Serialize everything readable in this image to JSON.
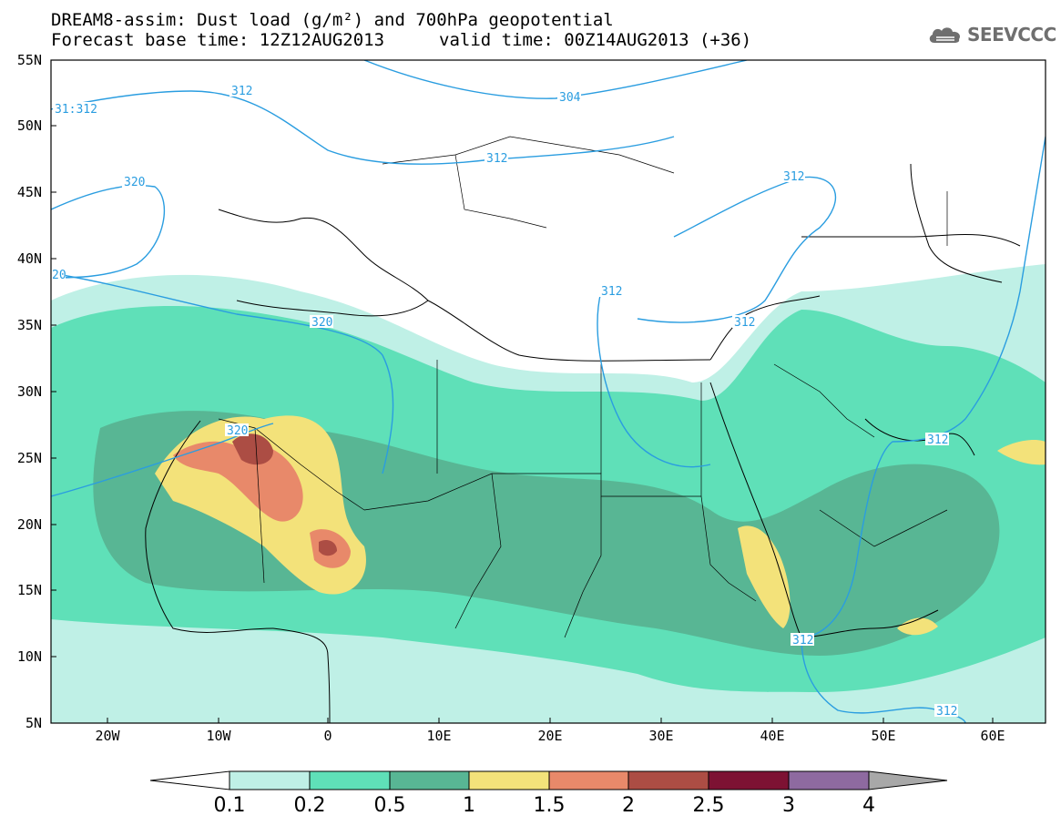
{
  "header": {
    "title_line1": "DREAM8-assim: Dust load (g/m²) and 700hPa geopotential",
    "title_line2": "Forecast base time: 12Z12AUG2013",
    "valid_time": "valid time: 00Z14AUG2013 (+36)"
  },
  "logo": {
    "text": "SEEVCCC",
    "icon": "cloud-icon"
  },
  "axes": {
    "lat_labels": [
      "55N",
      "50N",
      "45N",
      "40N",
      "35N",
      "30N",
      "25N",
      "20N",
      "15N",
      "10N",
      "5N"
    ],
    "lon_labels": [
      "20W",
      "10W",
      "0",
      "10E",
      "20E",
      "30E",
      "40E",
      "50E",
      "60E"
    ]
  },
  "contour_labels": [
    "312",
    "304",
    "312",
    "31:312",
    "320",
    "312",
    "20",
    "320",
    "312",
    "312",
    "320",
    "312",
    "312",
    "312",
    "312"
  ],
  "colorbar": {
    "ticks": [
      "0.1",
      "0.2",
      "0.5",
      "1",
      "1.5",
      "2",
      "2.5",
      "3",
      "4"
    ],
    "colors": [
      "#ffffff",
      "#bff0e6",
      "#5fe0b8",
      "#58b694",
      "#f3e27a",
      "#e8896a",
      "#ac4d44",
      "#7d1233",
      "#8e6aa0",
      "#a8a8a8"
    ]
  },
  "map_colors": {
    "ocean": "#ffffff",
    "coast": "#000000",
    "contour": "#2a9de0"
  }
}
